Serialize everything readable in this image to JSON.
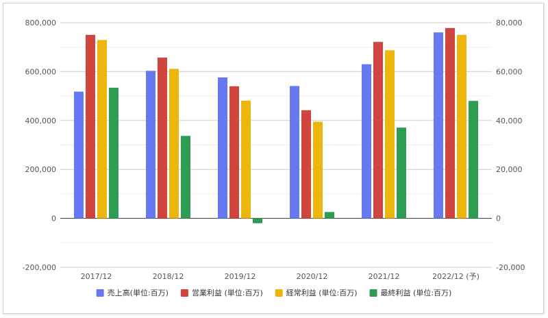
{
  "chart_data": {
    "type": "bar",
    "categories": [
      "2017/12",
      "2018/12",
      "2019/12",
      "2020/12",
      "2021/12",
      "2022/12 (予)"
    ],
    "left_axis": {
      "ylim": [
        -200000,
        800000
      ],
      "ticks": [
        -200000,
        0,
        200000,
        400000,
        600000,
        800000
      ],
      "tick_labels": [
        "-200,000",
        "0",
        "200,000",
        "400,000",
        "600,000",
        "800,000"
      ]
    },
    "right_axis": {
      "ylim": [
        -20000,
        80000
      ],
      "ticks": [
        -20000,
        0,
        20000,
        40000,
        60000,
        80000
      ],
      "tick_labels": [
        "-20,000",
        "0",
        "20,000",
        "40,000",
        "60,000",
        "80,000"
      ]
    },
    "grid": true,
    "legend_position": "bottom",
    "series": [
      {
        "name": "売上高(単位:百万)",
        "axis": "left",
        "color": "#6779f0",
        "values": [
          518000,
          603000,
          576000,
          541000,
          630000,
          760000
        ]
      },
      {
        "name": "営業利益 (単位:百万)",
        "axis": "right",
        "color": "#d0453e",
        "values": [
          75000,
          65700,
          54000,
          44200,
          72100,
          77800
        ]
      },
      {
        "name": "経常利益 (単位:百万)",
        "axis": "right",
        "color": "#ecb60d",
        "values": [
          72900,
          61100,
          48100,
          39500,
          68700,
          75000
        ]
      },
      {
        "name": "最終利益 (単位:百万)",
        "axis": "right",
        "color": "#2e9c52",
        "values": [
          53400,
          33700,
          -2000,
          2600,
          37100,
          48000
        ]
      }
    ]
  }
}
